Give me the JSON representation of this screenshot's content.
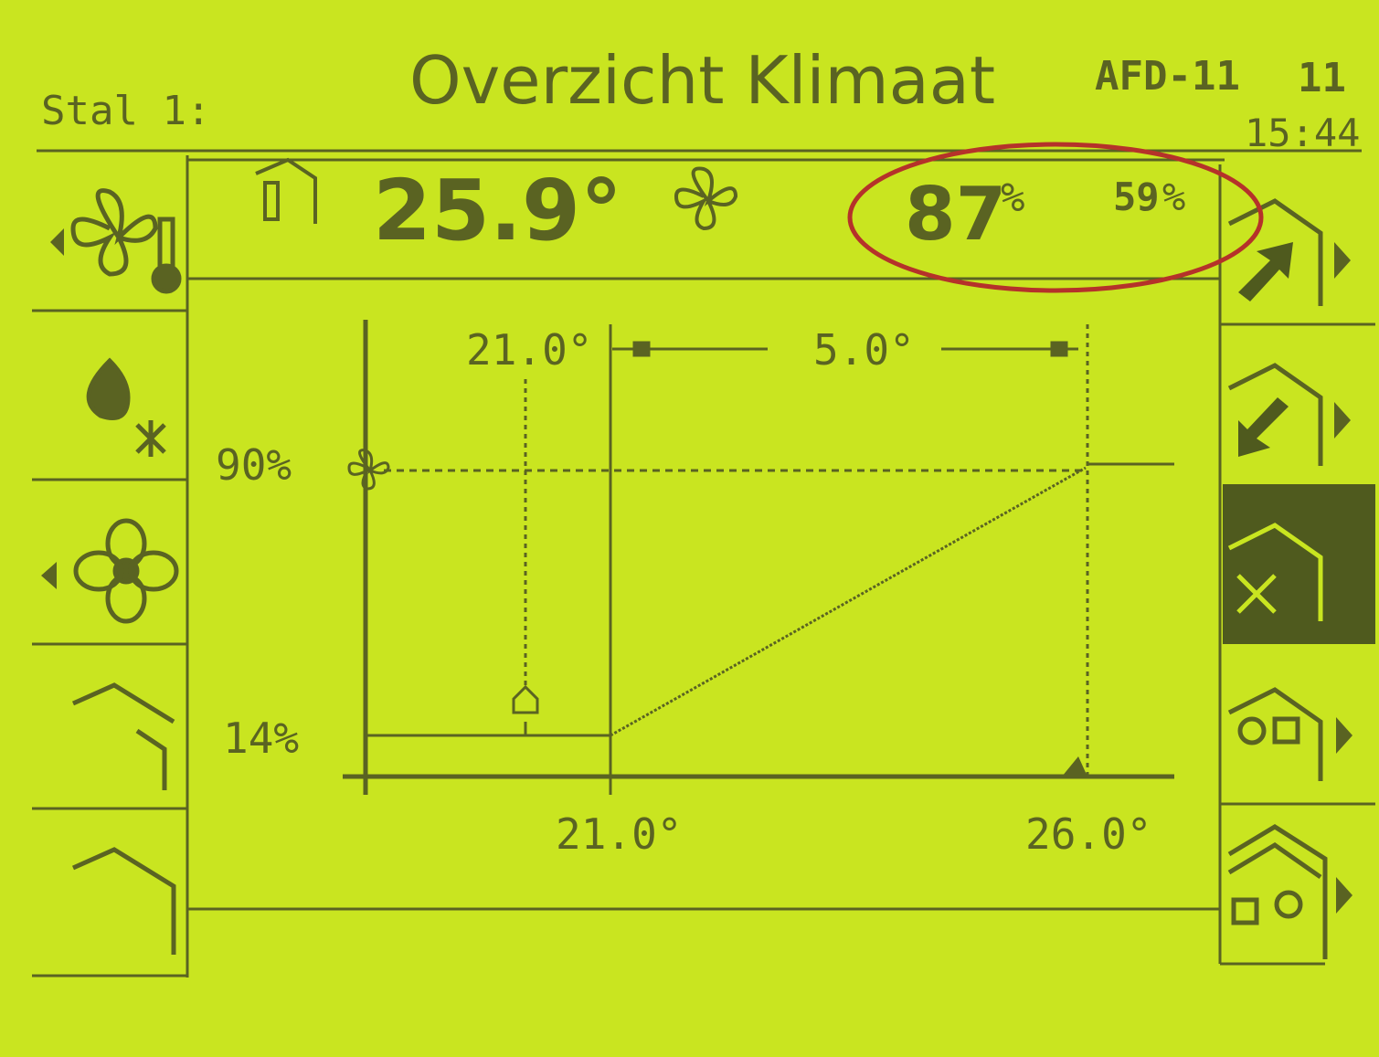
{
  "header": {
    "location": "Stal 1:",
    "title": "Overzicht Klimaat",
    "unit": "AFD-11",
    "unit_number": "11",
    "time": "15:44"
  },
  "status": {
    "temperature": "25.9°",
    "ventilation": {
      "value": "87",
      "unit": "%"
    },
    "humidity": {
      "value": "59",
      "unit": "%"
    }
  },
  "graph": {
    "bandwidth_start": "21.0°",
    "bandwidth": "5.0°",
    "max_ventilation": "90%",
    "min_ventilation": "14%",
    "x_start": "21.0°",
    "x_end": "26.0°"
  }
}
